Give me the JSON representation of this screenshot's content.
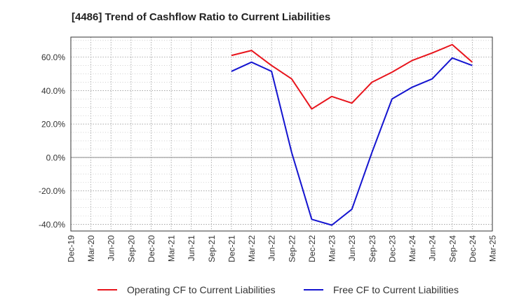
{
  "chart_data": {
    "type": "line",
    "title": "[4486]  Trend of Cashflow Ratio to Current Liabilities",
    "xlabel": "",
    "ylabel": "",
    "x": [
      "Dec-19",
      "Mar-20",
      "Jun-20",
      "Sep-20",
      "Dec-20",
      "Mar-21",
      "Jun-21",
      "Sep-21",
      "Dec-21",
      "Mar-22",
      "Jun-22",
      "Sep-22",
      "Dec-22",
      "Mar-23",
      "Jun-23",
      "Sep-23",
      "Dec-23",
      "Mar-24",
      "Jun-24",
      "Sep-24",
      "Dec-24",
      "Mar-25"
    ],
    "y_ticks": [
      "60.0%",
      "40.0%",
      "20.0%",
      "0.0%",
      "-20.0%",
      "-40.0%"
    ],
    "ylim": [
      -44,
      72
    ],
    "grid": true,
    "legend_position": "bottom",
    "series": [
      {
        "name": "Operating CF to Current Liabilities",
        "color": "#e8141c",
        "values": [
          null,
          null,
          null,
          null,
          null,
          null,
          null,
          null,
          61.0,
          64.0,
          55.0,
          47.0,
          29.0,
          36.5,
          32.5,
          45.0,
          51.0,
          58.0,
          62.5,
          67.5,
          57.0,
          null
        ]
      },
      {
        "name": "Free CF to Current Liabilities",
        "color": "#1414d0",
        "values": [
          null,
          null,
          null,
          null,
          null,
          null,
          null,
          null,
          51.5,
          57.0,
          51.5,
          3.0,
          -37.0,
          -40.5,
          -31.0,
          3.0,
          35.0,
          42.0,
          47.0,
          59.5,
          55.0,
          null
        ]
      }
    ]
  }
}
